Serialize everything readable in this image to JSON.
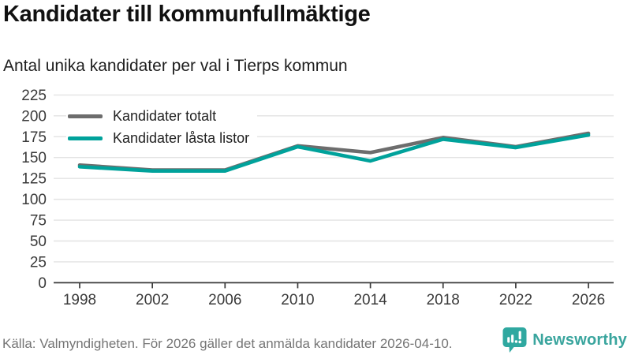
{
  "header": {
    "title": "Kandidater till kommunfullmäktige",
    "subtitle": "Antal unika kandidater per val i Tierps kommun"
  },
  "chart_data": {
    "type": "line",
    "x": [
      1998,
      2002,
      2006,
      2010,
      2014,
      2018,
      2022,
      2026
    ],
    "series": [
      {
        "name": "Kandidater totalt",
        "color": "#6d6d6d",
        "values": [
          141,
          135,
          135,
          164,
          156,
          174,
          163,
          179
        ]
      },
      {
        "name": "Kandidater låsta listor",
        "color": "#00a29b",
        "values": [
          139,
          134,
          134,
          163,
          146,
          172,
          162,
          177
        ]
      }
    ],
    "title": "Kandidater till kommunfullmäktige",
    "subtitle": "Antal unika kandidater per val i Tierps kommun",
    "xlabel": "",
    "ylabel": "",
    "ylim": [
      0,
      225
    ],
    "ytick_step": 25,
    "grid": true,
    "legend_position": "top-left"
  },
  "footer": {
    "source": "Källa: Valmyndigheten. För 2026 gäller det anmälda kandidater 2026-04-10.",
    "brand": "Newsworthy"
  },
  "colors": {
    "accent_teal": "#00a29b",
    "series_gray": "#6d6d6d",
    "grid": "#e3e3e3",
    "axis": "#3a3a3a",
    "logo_teal": "#2fa8a0",
    "muted_text": "#757575"
  }
}
